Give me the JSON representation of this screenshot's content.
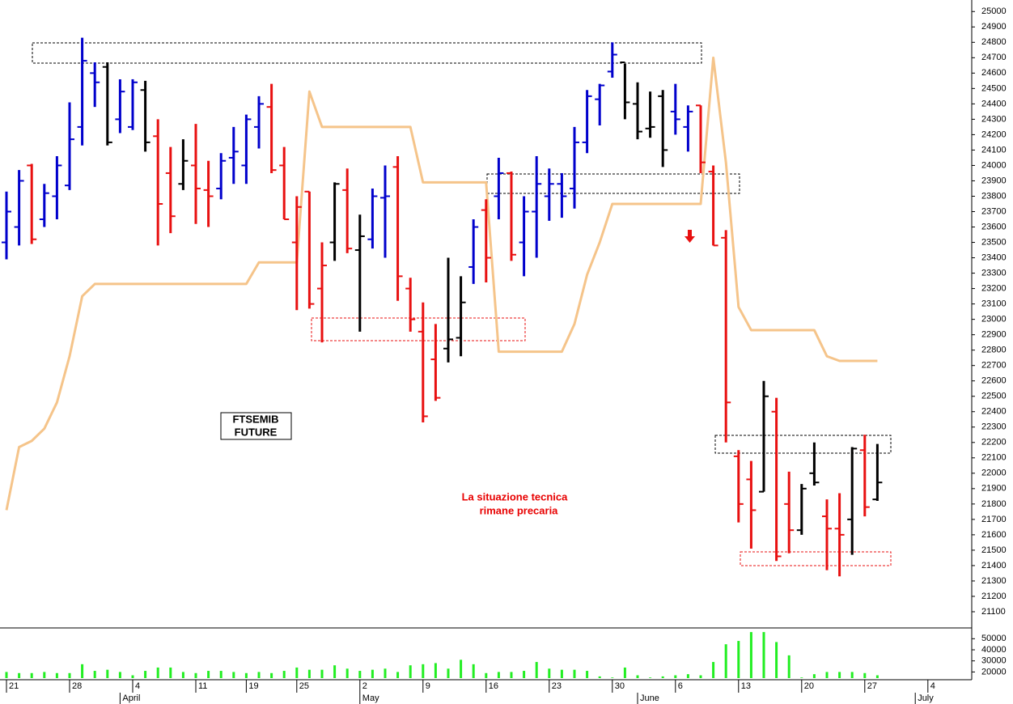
{
  "chart_data": [
    {
      "type": "ohlc",
      "title_lines": [
        "FTSEMIB",
        "FUTURE"
      ],
      "annotation_lines": [
        "La situazione tecnica",
        "rimane precaria"
      ],
      "annotation_color": "#e80000",
      "categories": [
        "21",
        null,
        null,
        null,
        null,
        "28",
        null,
        null,
        null,
        null,
        "4",
        null,
        null,
        null,
        null,
        "11",
        null,
        null,
        null,
        "19",
        null,
        null,
        null,
        "25",
        null,
        null,
        null,
        null,
        "2",
        null,
        null,
        null,
        null,
        "9",
        null,
        null,
        null,
        null,
        "16",
        null,
        null,
        null,
        null,
        "23",
        null,
        null,
        null,
        null,
        "30",
        null,
        null,
        null,
        null,
        "6",
        null,
        null,
        null,
        null,
        "13",
        null,
        null,
        null,
        null,
        "20",
        null,
        null,
        null,
        null,
        "27",
        null,
        null,
        null,
        null,
        "4"
      ],
      "months": [
        null,
        null,
        null,
        null,
        null,
        null,
        null,
        null,
        null,
        "April",
        null,
        null,
        null,
        null,
        null,
        null,
        null,
        null,
        null,
        null,
        null,
        null,
        null,
        null,
        null,
        null,
        null,
        null,
        "May",
        null,
        null,
        null,
        null,
        null,
        null,
        null,
        null,
        null,
        null,
        null,
        null,
        null,
        null,
        null,
        null,
        null,
        null,
        null,
        null,
        null,
        "June",
        null,
        null,
        null,
        null,
        null,
        null,
        null,
        null,
        null,
        null,
        null,
        null,
        null,
        null,
        null,
        null,
        null,
        null,
        null,
        null,
        null,
        "July",
        null
      ],
      "open": [
        23500,
        23600,
        24000,
        23650,
        23800,
        23870,
        24250,
        24600,
        24640,
        24300,
        24250,
        24490,
        24190,
        23950,
        23880,
        24000,
        23840,
        23850,
        24050,
        24000,
        24250,
        24380,
        24000,
        23500,
        23830,
        23200,
        23500,
        23840,
        23450,
        23520,
        23790,
        23990,
        23200,
        22920,
        22740,
        22810,
        22880,
        23340,
        23710,
        23800,
        23950,
        23500,
        23700,
        23800,
        23880,
        23850,
        24150,
        24430,
        24610,
        24670,
        24400,
        24240,
        24450,
        24350,
        24250,
        24390,
        23960,
        23530,
        22110,
        21960,
        21880,
        22400,
        21800,
        21630,
        22000,
        21720,
        21640,
        21700,
        22150,
        21830,
        null,
        null,
        null,
        null
      ],
      "high": [
        23830,
        23970,
        24010,
        23880,
        24060,
        24410,
        24830,
        24670,
        24670,
        24560,
        24560,
        24550,
        24300,
        24120,
        24170,
        24270,
        24030,
        24080,
        24250,
        24330,
        24450,
        24530,
        24120,
        23800,
        23830,
        23500,
        23890,
        23980,
        23680,
        23850,
        24000,
        24060,
        23270,
        23110,
        22970,
        23400,
        23280,
        23650,
        23780,
        24050,
        23960,
        23800,
        24060,
        23980,
        23950,
        24250,
        24490,
        24530,
        24800,
        24660,
        24540,
        24480,
        24490,
        24530,
        24390,
        24390,
        24000,
        23580,
        22150,
        22080,
        22600,
        22490,
        22010,
        21930,
        22200,
        21830,
        21870,
        22170,
        22250,
        22190,
        null,
        null,
        null,
        null
      ],
      "low": [
        23390,
        23480,
        23490,
        23600,
        23650,
        23840,
        24130,
        24380,
        24130,
        24210,
        24230,
        24090,
        23480,
        23560,
        23840,
        23620,
        23600,
        23780,
        23880,
        23880,
        24110,
        23950,
        23650,
        23060,
        23070,
        22850,
        23380,
        23430,
        22920,
        23460,
        23400,
        23120,
        22920,
        22330,
        22470,
        22720,
        22760,
        23230,
        23240,
        23650,
        23380,
        23280,
        23400,
        23640,
        23660,
        23720,
        24080,
        24260,
        24570,
        24300,
        24170,
        24180,
        23990,
        24200,
        24090,
        23950,
        23480,
        22200,
        21680,
        21510,
        21880,
        21430,
        21480,
        21600,
        21920,
        21370,
        21330,
        21470,
        21720,
        21820,
        null,
        null,
        null,
        null
      ],
      "close": [
        23700,
        23900,
        23520,
        23820,
        24000,
        24170,
        24680,
        24540,
        24150,
        24480,
        24540,
        24150,
        23750,
        23670,
        24030,
        23850,
        23800,
        24030,
        24090,
        24300,
        24400,
        23970,
        23650,
        23730,
        23100,
        23350,
        23880,
        23460,
        23540,
        23800,
        23800,
        23280,
        23000,
        22370,
        22490,
        22870,
        23110,
        23600,
        23400,
        23950,
        23420,
        23700,
        23880,
        23880,
        23800,
        24150,
        24450,
        24520,
        24720,
        24410,
        24220,
        24250,
        24100,
        24300,
        24350,
        24020,
        23480,
        22460,
        21800,
        21760,
        22500,
        21460,
        21630,
        21900,
        21940,
        21640,
        21600,
        22160,
        21780,
        21940,
        null,
        null,
        null,
        null
      ],
      "bar_colors": [
        "#0000cc",
        "#0000cc",
        "#e81010",
        "#0000cc",
        "#0000cc",
        "#0000cc",
        "#0000cc",
        "#0000cc",
        "#000000",
        "#0000cc",
        "#0000cc",
        "#000000",
        "#e81010",
        "#e81010",
        "#000000",
        "#e81010",
        "#e81010",
        "#0000cc",
        "#0000cc",
        "#0000cc",
        "#0000cc",
        "#e81010",
        "#e81010",
        "#e81010",
        "#e81010",
        "#e81010",
        "#000000",
        "#e81010",
        "#000000",
        "#0000cc",
        "#0000cc",
        "#e81010",
        "#e81010",
        "#e81010",
        "#e81010",
        "#000000",
        "#000000",
        "#0000cc",
        "#e81010",
        "#0000cc",
        "#e81010",
        "#0000cc",
        "#0000cc",
        "#0000cc",
        "#0000cc",
        "#0000cc",
        "#0000cc",
        "#0000cc",
        "#0000cc",
        "#000000",
        "#000000",
        "#000000",
        "#000000",
        "#0000cc",
        "#0000cc",
        "#e81010",
        "#e81010",
        "#e81010",
        "#e81010",
        "#e81010",
        "#000000",
        "#e81010",
        "#e81010",
        "#000000",
        "#000000",
        "#e81010",
        "#e81010",
        "#000000",
        "#e81010",
        "#000000",
        null,
        null,
        null,
        null
      ],
      "line": {
        "color": "#f5c48a",
        "values": [
          21760,
          22170,
          22210,
          22290,
          22460,
          22760,
          23150,
          23230,
          23230,
          23230,
          23230,
          23230,
          23230,
          23230,
          23230,
          23230,
          23230,
          23230,
          23230,
          23230,
          23370,
          23370,
          23370,
          23370,
          24480,
          24250,
          24250,
          24250,
          24250,
          24250,
          24250,
          24250,
          24250,
          23890,
          23890,
          23890,
          23890,
          23890,
          23890,
          22790,
          22790,
          22790,
          22790,
          22790,
          22790,
          22970,
          23290,
          23500,
          23750,
          23750,
          23750,
          23750,
          23750,
          23750,
          23750,
          23750,
          24700,
          24020,
          23080,
          22930,
          22930,
          22930,
          22930,
          22930,
          22930,
          22760,
          22730,
          22730,
          22730,
          22730,
          null,
          null,
          null,
          null
        ]
      },
      "ylim": [
        21000,
        25075
      ],
      "yticks": [
        21100,
        21200,
        21300,
        21400,
        21500,
        21600,
        21700,
        21800,
        21900,
        22000,
        22100,
        22200,
        22300,
        22400,
        22500,
        22600,
        22700,
        22800,
        22900,
        23000,
        23100,
        23200,
        23300,
        23400,
        23500,
        23600,
        23700,
        23800,
        23900,
        24000,
        24100,
        24200,
        24300,
        24400,
        24500,
        24600,
        24700,
        24800,
        24900,
        25000
      ]
    },
    {
      "type": "bar",
      "color": "#22ee22",
      "values": [
        20000,
        19000,
        19000,
        20000,
        19000,
        19000,
        27000,
        21000,
        22000,
        20000,
        17000,
        21000,
        24000,
        24000,
        20000,
        19000,
        21000,
        21000,
        20000,
        19000,
        20000,
        19000,
        21000,
        24000,
        22000,
        22000,
        26000,
        23000,
        21000,
        22000,
        23000,
        20000,
        26000,
        27000,
        28000,
        23000,
        31000,
        27000,
        19000,
        20000,
        20000,
        21000,
        29000,
        23000,
        22000,
        22000,
        21000,
        16000,
        15000,
        24000,
        17000,
        15000,
        16000,
        17000,
        18000,
        17000,
        29000,
        45000,
        48000,
        56000,
        56000,
        47000,
        35000,
        15000,
        18000,
        20000,
        20000,
        20000,
        19000,
        17000,
        null,
        null,
        null,
        null
      ],
      "ylim": [
        13000,
        59000
      ],
      "yticks": [
        20000,
        30000,
        40000,
        50000
      ]
    }
  ]
}
